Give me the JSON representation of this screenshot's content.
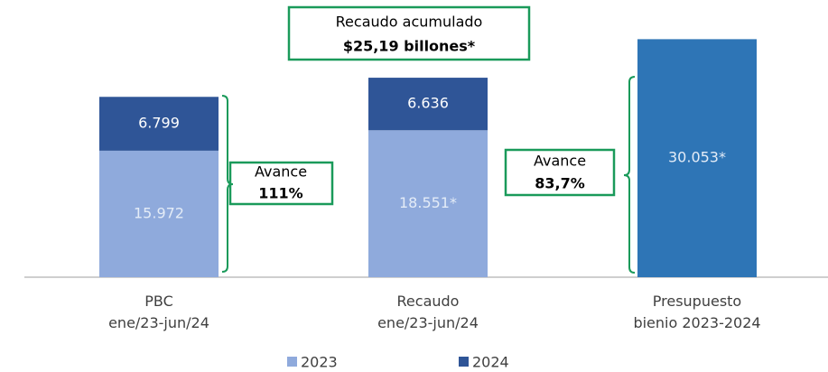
{
  "chart_data": {
    "type": "stacked_bar",
    "categories": [
      "PBC\nene/23-jun/24",
      "Recaudo\nene/23-jun/24",
      "Presupuesto\nbienio 2023-2024"
    ],
    "series": [
      {
        "name": "2023",
        "color": "#8faadc",
        "values": [
          15972,
          18551,
          null
        ],
        "value_labels": [
          "15.972",
          "18.551*",
          null
        ],
        "label_color": "#e4ecf7"
      },
      {
        "name": "2024",
        "color": "#2f5597",
        "values": [
          6799,
          6636,
          null
        ],
        "value_labels": [
          "6.799",
          "6.636",
          null
        ],
        "label_color": "#ffffff"
      },
      {
        "color": "#2e75b6",
        "values": [
          null,
          null,
          30053
        ],
        "value_labels": [
          null,
          null,
          "30.053*"
        ],
        "label_color": "#e4ecf7"
      }
    ],
    "ylim": [
      0,
      35000
    ],
    "annotations": [
      {
        "text": "Recaudo acumulado",
        "bold": false
      },
      {
        "text": "$25,19 billones*",
        "bold": true
      },
      {
        "text": "Avance",
        "bold": false
      },
      {
        "text": "111%",
        "bold": true
      },
      {
        "text": "Avance",
        "bold": false
      },
      {
        "text": "83,7%",
        "bold": true
      }
    ]
  }
}
